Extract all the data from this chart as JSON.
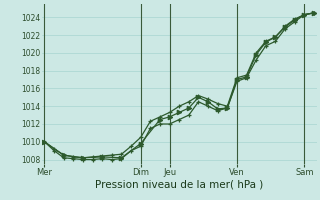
{
  "xlabel": "Pression niveau de la mer( hPa )",
  "background_color": "#cce8e4",
  "grid_color": "#a8d4d0",
  "line_color": "#2d5a2d",
  "vline_color": "#3a5a3a",
  "ylim": [
    1007.5,
    1025.5
  ],
  "yticks": [
    1008,
    1010,
    1012,
    1014,
    1016,
    1018,
    1020,
    1022,
    1024
  ],
  "day_labels": [
    "Mer",
    "Dim",
    "Jeu",
    "Ven",
    "Sam"
  ],
  "day_positions": [
    0.0,
    10.0,
    13.0,
    20.0,
    27.0
  ],
  "xlim": [
    -0.3,
    28.3
  ],
  "series1_x": [
    0,
    1,
    2,
    3,
    4,
    5,
    6,
    7,
    8,
    9,
    10,
    11,
    12,
    13,
    14,
    15,
    16,
    17,
    18,
    19,
    20,
    21,
    22,
    23,
    24,
    25,
    26,
    27,
    28
  ],
  "series1_y": [
    1010.0,
    1009.0,
    1008.2,
    1008.1,
    1008.0,
    1008.0,
    1008.1,
    1008.0,
    1008.1,
    1009.0,
    1009.5,
    1011.5,
    1012.0,
    1012.0,
    1012.5,
    1013.0,
    1014.5,
    1014.0,
    1013.5,
    1013.8,
    1016.8,
    1017.2,
    1019.2,
    1020.8,
    1021.3,
    1022.7,
    1023.5,
    1024.3,
    1024.5
  ],
  "series2_x": [
    0,
    1,
    2,
    3,
    4,
    5,
    6,
    7,
    8,
    9,
    10,
    11,
    12,
    13,
    14,
    15,
    16,
    17,
    18,
    19,
    20,
    21,
    22,
    23,
    24,
    25,
    26,
    27,
    28
  ],
  "series2_y": [
    1010.0,
    1009.2,
    1008.5,
    1008.3,
    1008.2,
    1008.3,
    1008.4,
    1008.5,
    1008.6,
    1009.5,
    1010.5,
    1012.3,
    1012.8,
    1013.3,
    1014.0,
    1014.5,
    1015.2,
    1014.8,
    1014.3,
    1014.0,
    1017.2,
    1017.5,
    1020.0,
    1021.3,
    1021.8,
    1023.0,
    1023.8,
    1024.3,
    1024.5
  ],
  "series3_x": [
    0,
    2,
    4,
    6,
    8,
    10,
    12,
    13,
    14,
    15,
    16,
    17,
    18,
    19,
    20,
    21,
    22,
    23,
    24,
    25,
    26,
    27,
    28
  ],
  "series3_y": [
    1010.0,
    1008.5,
    1008.2,
    1008.3,
    1008.2,
    1009.8,
    1012.5,
    1012.8,
    1013.3,
    1013.8,
    1015.0,
    1014.5,
    1013.7,
    1013.8,
    1017.0,
    1017.3,
    1019.8,
    1021.2,
    1021.8,
    1022.9,
    1023.7,
    1024.3,
    1024.5
  ]
}
